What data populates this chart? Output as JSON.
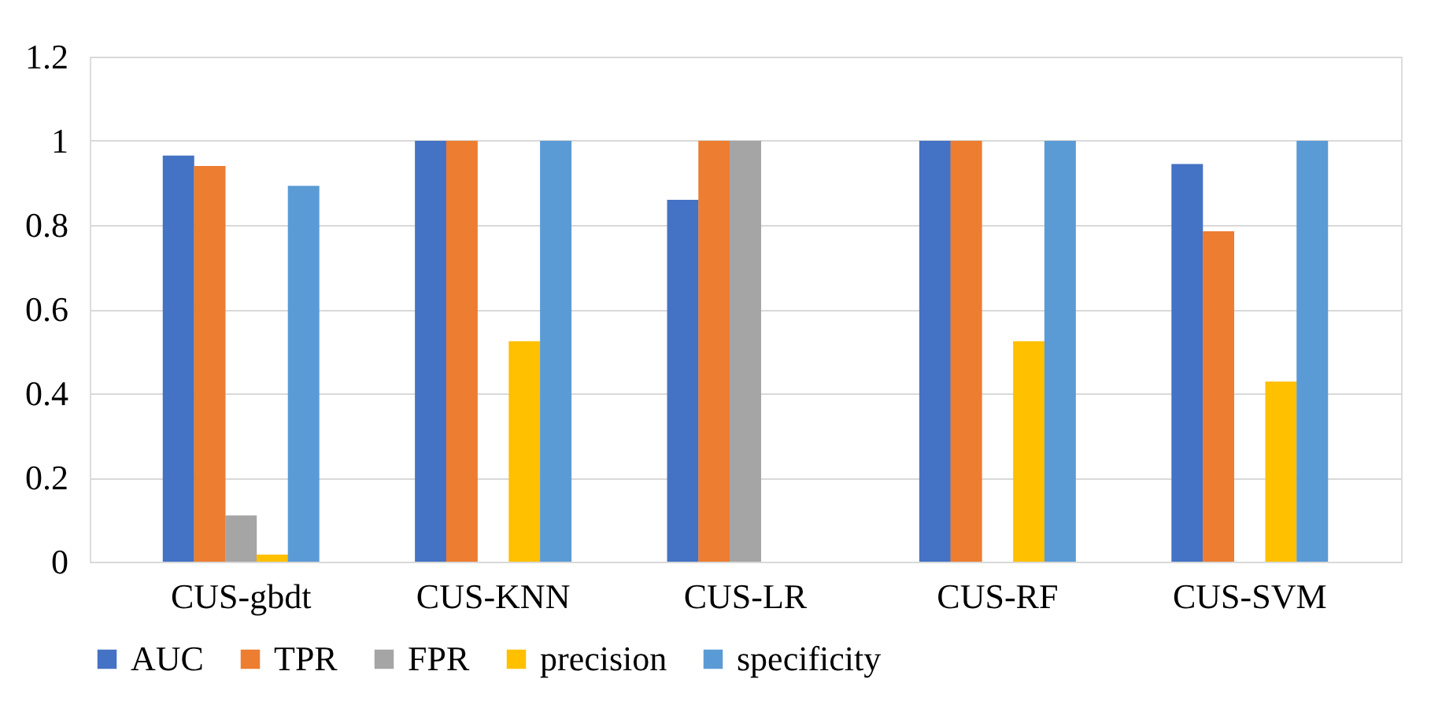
{
  "chart_data": {
    "type": "bar",
    "categories": [
      "CUS-gbdt",
      "CUS-KNN",
      "CUS-LR",
      "CUS-RF",
      "CUS-SVM"
    ],
    "series": [
      {
        "name": "AUC",
        "color": "#4472c4",
        "values": [
          0.965,
          1,
          0.86,
          1,
          0.945
        ]
      },
      {
        "name": "TPR",
        "color": "#ed7d31",
        "values": [
          0.94,
          1,
          1,
          1,
          0.785
        ]
      },
      {
        "name": "FPR",
        "color": "#a5a5a5",
        "values": [
          0.11,
          0,
          1,
          0,
          0
        ]
      },
      {
        "name": "precision",
        "color": "#ffc000",
        "values": [
          0.017,
          0.524,
          0,
          0.524,
          0.428
        ]
      },
      {
        "name": "specificity",
        "color": "#5b9bd5",
        "values": [
          0.893,
          1,
          0,
          1,
          1
        ]
      }
    ],
    "ylim": [
      0,
      1.2
    ],
    "yticks": [
      0,
      0.2,
      0.4,
      0.6,
      0.8,
      1,
      1.2
    ],
    "grid": "y",
    "legend": "bottom"
  }
}
